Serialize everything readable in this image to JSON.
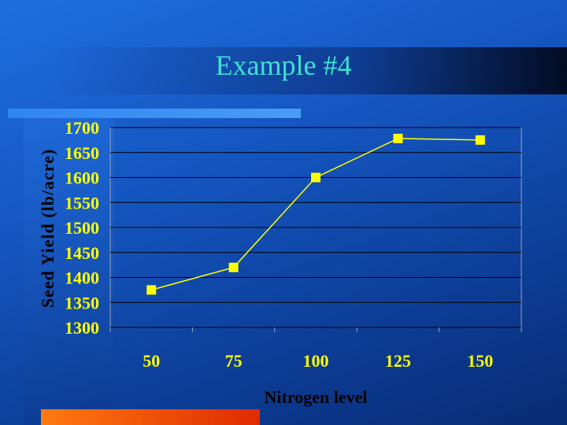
{
  "slide": {
    "title": "Example #4"
  },
  "colors": {
    "series": "#ffff00",
    "grid": "#000000",
    "tick_labels": "#ffff00",
    "title": "#40e0d0"
  },
  "chart_data": {
    "type": "line",
    "x": [
      50,
      75,
      100,
      125,
      150
    ],
    "categories": [
      "50",
      "75",
      "100",
      "125",
      "150"
    ],
    "series": [
      {
        "values": [
          1375,
          1420,
          1600,
          1678,
          1675
        ]
      }
    ],
    "xlabel": "Nitrogen level",
    "ylabel": "Seed Yield (lb/acre)",
    "ylim": [
      1300,
      1700
    ],
    "yticks": [
      1300,
      1350,
      1400,
      1450,
      1500,
      1550,
      1600,
      1650,
      1700
    ],
    "grid": true,
    "legend": "none"
  }
}
